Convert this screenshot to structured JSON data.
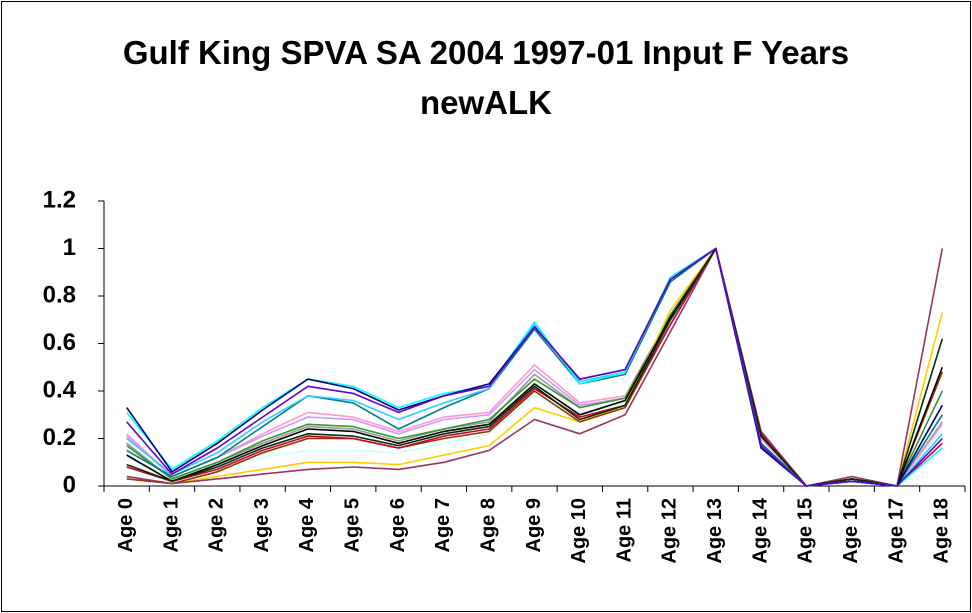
{
  "chart_data": {
    "type": "line",
    "title": "Gulf King SPVA SA 2004 1997-01 Input F Years newALK",
    "categories": [
      "Age 0",
      "Age 1",
      "Age 2",
      "Age 3",
      "Age 4",
      "Age 5",
      "Age 6",
      "Age 7",
      "Age 8",
      "Age 9",
      "Age 10",
      "Age 11",
      "Age 12",
      "Age 13",
      "Age 14",
      "Age 15",
      "Age 16",
      "Age 17",
      "Age 18"
    ],
    "ylim": [
      0,
      1.2
    ],
    "yticks": [
      0,
      0.2,
      0.4,
      0.6,
      0.8,
      1,
      1.2
    ],
    "grid": false,
    "series": [
      {
        "color": "#ccffff",
        "values": [
          0.12,
          0.03,
          0.08,
          0.12,
          0.15,
          0.15,
          0.14,
          0.18,
          0.22,
          0.38,
          0.3,
          0.35,
          0.7,
          1,
          0.2,
          0,
          0.03,
          0,
          0.24
        ]
      },
      {
        "color": "#999999",
        "values": [
          0.18,
          0.03,
          0.1,
          0.18,
          0.25,
          0.24,
          0.19,
          0.24,
          0.27,
          0.47,
          0.33,
          0.37,
          0.72,
          1,
          0.2,
          0,
          0.03,
          0,
          0.27
        ]
      },
      {
        "color": "#ff99cc",
        "values": [
          0.22,
          0.04,
          0.12,
          0.22,
          0.31,
          0.29,
          0.23,
          0.29,
          0.31,
          0.51,
          0.35,
          0.38,
          0.72,
          1,
          0.2,
          0,
          0.03,
          0,
          0.26
        ]
      },
      {
        "color": "#cc99ff",
        "values": [
          0.21,
          0.04,
          0.12,
          0.21,
          0.29,
          0.28,
          0.22,
          0.28,
          0.3,
          0.49,
          0.34,
          0.37,
          0.72,
          1,
          0.2,
          0,
          0.03,
          0,
          0.3
        ]
      },
      {
        "color": "#339933",
        "values": [
          0.17,
          0.03,
          0.1,
          0.19,
          0.26,
          0.25,
          0.2,
          0.24,
          0.28,
          0.45,
          0.33,
          0.37,
          0.72,
          1,
          0.21,
          0,
          0.03,
          0,
          0.4
        ]
      },
      {
        "color": "#ffcc00",
        "values": [
          0.04,
          0.01,
          0.04,
          0.07,
          0.1,
          0.1,
          0.09,
          0.13,
          0.17,
          0.33,
          0.27,
          0.34,
          0.74,
          1,
          0.21,
          0,
          0.03,
          0,
          0.73
        ]
      },
      {
        "color": "#993300",
        "values": [
          0.03,
          0.01,
          0.06,
          0.14,
          0.2,
          0.2,
          0.16,
          0.2,
          0.23,
          0.4,
          0.27,
          0.33,
          0.68,
          1,
          0.22,
          0,
          0.03,
          0,
          0.48
        ]
      },
      {
        "color": "#993366",
        "values": [
          0.04,
          0.01,
          0.03,
          0.05,
          0.07,
          0.08,
          0.07,
          0.1,
          0.15,
          0.28,
          0.22,
          0.3,
          0.65,
          1,
          0.23,
          0,
          0.04,
          0,
          1
        ]
      },
      {
        "color": "#cc0033",
        "values": [
          0.08,
          0.02,
          0.07,
          0.15,
          0.21,
          0.2,
          0.16,
          0.21,
          0.24,
          0.41,
          0.29,
          0.34,
          0.68,
          1,
          0.22,
          0,
          0.03,
          0,
          0.18
        ]
      },
      {
        "color": "#000000",
        "values": [
          0.13,
          0.02,
          0.09,
          0.17,
          0.24,
          0.23,
          0.18,
          0.23,
          0.26,
          0.43,
          0.3,
          0.36,
          0.71,
          1,
          0.21,
          0,
          0.03,
          0,
          0.5
        ]
      },
      {
        "color": "#003300",
        "values": [
          0.09,
          0.02,
          0.08,
          0.16,
          0.22,
          0.21,
          0.17,
          0.22,
          0.25,
          0.42,
          0.28,
          0.34,
          0.7,
          1,
          0.21,
          0,
          0.03,
          0,
          0.62
        ]
      },
      {
        "color": "#008080",
        "values": [
          0.15,
          0.04,
          0.12,
          0.25,
          0.38,
          0.35,
          0.24,
          0.33,
          0.41,
          0.66,
          0.43,
          0.47,
          0.86,
          1,
          0.18,
          0,
          0.02,
          0,
          0.3
        ]
      },
      {
        "color": "#33ccff",
        "values": [
          0.2,
          0.05,
          0.14,
          0.27,
          0.38,
          0.36,
          0.28,
          0.35,
          0.41,
          0.68,
          0.44,
          0.48,
          0.87,
          1,
          0.17,
          0,
          0.02,
          0,
          0.22
        ]
      },
      {
        "color": "#00ffff",
        "values": [
          0.31,
          0.07,
          0.19,
          0.33,
          0.45,
          0.42,
          0.33,
          0.39,
          0.42,
          0.69,
          0.43,
          0.48,
          0.88,
          1,
          0.16,
          0,
          0.02,
          0,
          0.16
        ]
      },
      {
        "color": "#000080",
        "values": [
          0.33,
          0.06,
          0.18,
          0.32,
          0.45,
          0.41,
          0.32,
          0.38,
          0.43,
          0.67,
          0.45,
          0.49,
          0.87,
          1,
          0.16,
          0,
          0.02,
          0,
          0.34
        ]
      },
      {
        "color": "#6600cc",
        "values": [
          0.27,
          0.05,
          0.16,
          0.29,
          0.42,
          0.39,
          0.31,
          0.38,
          0.42,
          0.67,
          0.45,
          0.49,
          0.87,
          1,
          0.17,
          0,
          0.02,
          0,
          0.2
        ]
      }
    ]
  }
}
